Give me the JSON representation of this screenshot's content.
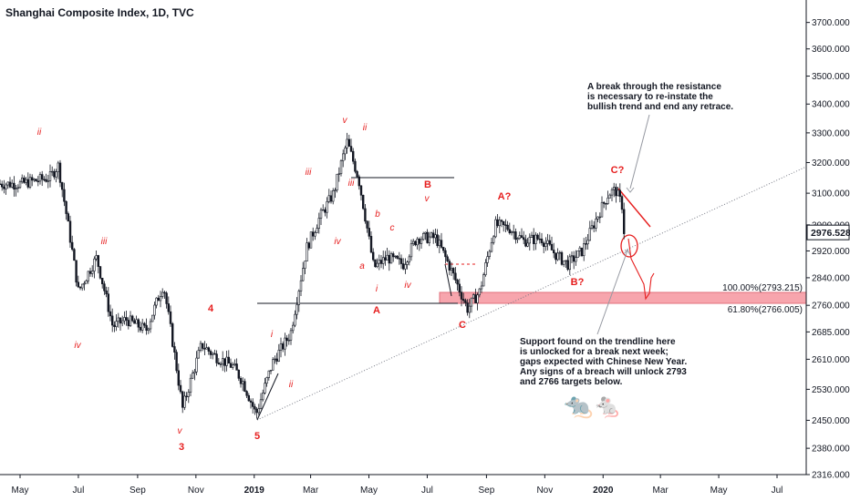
{
  "header": {
    "title": "Shanghai Composite Index, 1D, TVC"
  },
  "chart_data": {
    "type": "candlestick",
    "title": "Shanghai Composite Index, 1D, TVC",
    "ylim": [
      2316,
      3780
    ],
    "y_scale": "log",
    "y_ticks": [
      "3700.000",
      "3600.000",
      "3500.000",
      "3400.000",
      "3300.000",
      "3200.000",
      "3100.000",
      "3000.000",
      "2920.000",
      "2840.000",
      "2760.000",
      "2685.000",
      "2610.000",
      "2530.000",
      "2450.000",
      "2380.000",
      "2316.000"
    ],
    "x_ticks": [
      "May",
      "Jul",
      "Sep",
      "Nov",
      "2019",
      "Mar",
      "May",
      "Jul",
      "Sep",
      "Nov",
      "2020",
      "Mar",
      "May",
      "Jul"
    ],
    "x_ticks_bold": [
      "2019",
      "2020"
    ],
    "last_price": "2976.528",
    "last_price_color": "#131722",
    "candle_color": "#131722",
    "series": [
      {
        "name": "",
        "x": [
          "2018-05-01",
          "2018-06-01",
          "2018-06-10",
          "2018-07-01",
          "2018-07-20",
          "2018-08-06",
          "2018-08-20",
          "2018-09-10",
          "2018-09-28",
          "2018-10-18",
          "2018-11-07",
          "2018-11-20",
          "2018-12-10",
          "2018-12-20",
          "2019-01-03",
          "2019-01-20",
          "2019-02-08",
          "2019-02-25",
          "2019-03-10",
          "2019-03-25",
          "2019-04-08",
          "2019-04-20",
          "2019-05-06",
          "2019-05-20",
          "2019-06-06",
          "2019-06-20",
          "2019-07-10",
          "2019-07-25",
          "2019-08-12",
          "2019-08-25",
          "2019-09-10",
          "2019-09-25",
          "2019-10-10",
          "2019-10-28",
          "2019-11-12",
          "2019-11-25",
          "2019-12-10",
          "2019-12-25",
          "2020-01-07",
          "2020-01-14",
          "2020-01-21",
          "2020-01-23"
        ],
        "close": [
          3130,
          3150,
          3190,
          2800,
          2900,
          2700,
          2720,
          2690,
          2820,
          2480,
          2650,
          2620,
          2590,
          2550,
          2465,
          2600,
          2680,
          2930,
          3020,
          3100,
          3270,
          3150,
          2870,
          2900,
          2880,
          2960,
          2960,
          2870,
          2750,
          2800,
          3000,
          2990,
          2950,
          2960,
          2910,
          2880,
          2920,
          3020,
          3100,
          3110,
          3060,
          2976
        ]
      }
    ],
    "levels": [
      {
        "label": "100.00%(2793.215)",
        "value": 2793.215
      },
      {
        "label": "61.80%(2766.005)",
        "value": 2766.005
      }
    ],
    "wave_labels": {
      "red": [
        "4",
        "3",
        "5",
        "A",
        "B",
        "C",
        "A?",
        "B?",
        "C?"
      ],
      "red_italic": [
        "ii",
        "iii",
        "iv",
        "v",
        "i",
        "ii",
        "iii",
        "v",
        "ii",
        "iv",
        "iii",
        "a",
        "b",
        "c",
        "iv",
        "v",
        "i"
      ]
    },
    "annotations": [
      "A break through the resistance\nis necessary to re-instate the\nbullish trend and end any retrace.",
      "Support found on the trendline here\nis unlocked for a break next week;\ngaps expected with Chinese New Year.\nAny signs of a breach will unlock 2793\nand 2766 targets below."
    ],
    "grid": false,
    "colors": {
      "wave_label": "#e61e1e",
      "support_box": "#f7a5ad",
      "arrow": "#9598a1",
      "trendline": "#787b86"
    }
  }
}
